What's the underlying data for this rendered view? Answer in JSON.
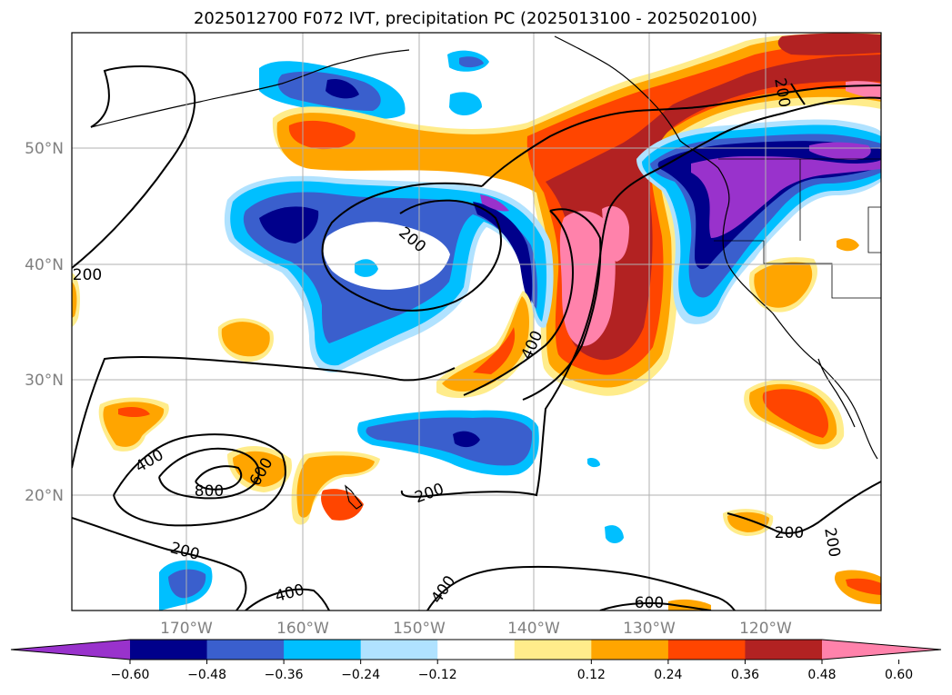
{
  "title": "2025012700 F072 IVT, precipitation PC (2025013100 - 2025020100)",
  "map": {
    "lon_labels": [
      "170°W",
      "160°W",
      "150°W",
      "140°W",
      "130°W",
      "120°W"
    ],
    "lat_labels": [
      "50°N",
      "40°N",
      "30°N",
      "20°N"
    ],
    "contour_labels": [
      "200",
      "200",
      "200",
      "200",
      "200",
      "200",
      "200",
      "400",
      "400",
      "400",
      "400",
      "600",
      "600",
      "800"
    ]
  },
  "colorbar": {
    "ticks": [
      "−0.60",
      "−0.48",
      "−0.36",
      "−0.24",
      "−0.12",
      "0.12",
      "0.24",
      "0.36",
      "0.48",
      "0.60"
    ],
    "colors": [
      "#9932cc",
      "#00008b",
      "#3a5fcd",
      "#00bfff",
      "#b0e2ff",
      "#ffffff",
      "#ffec8b",
      "#ffa500",
      "#ff4500",
      "#b22222",
      "#ff82ab"
    ]
  },
  "colors": {
    "neg_strong": "#9932cc",
    "neg_dark": "#00008b",
    "neg_mid": "#3a5fcd",
    "neg_light": "#00bfff",
    "neg_pale": "#b0e2ff",
    "pos_pale": "#ffec8b",
    "pos_light": "#ffa500",
    "pos_mid": "#ff4500",
    "pos_dark": "#b22222",
    "pos_strong": "#ff82ab"
  }
}
